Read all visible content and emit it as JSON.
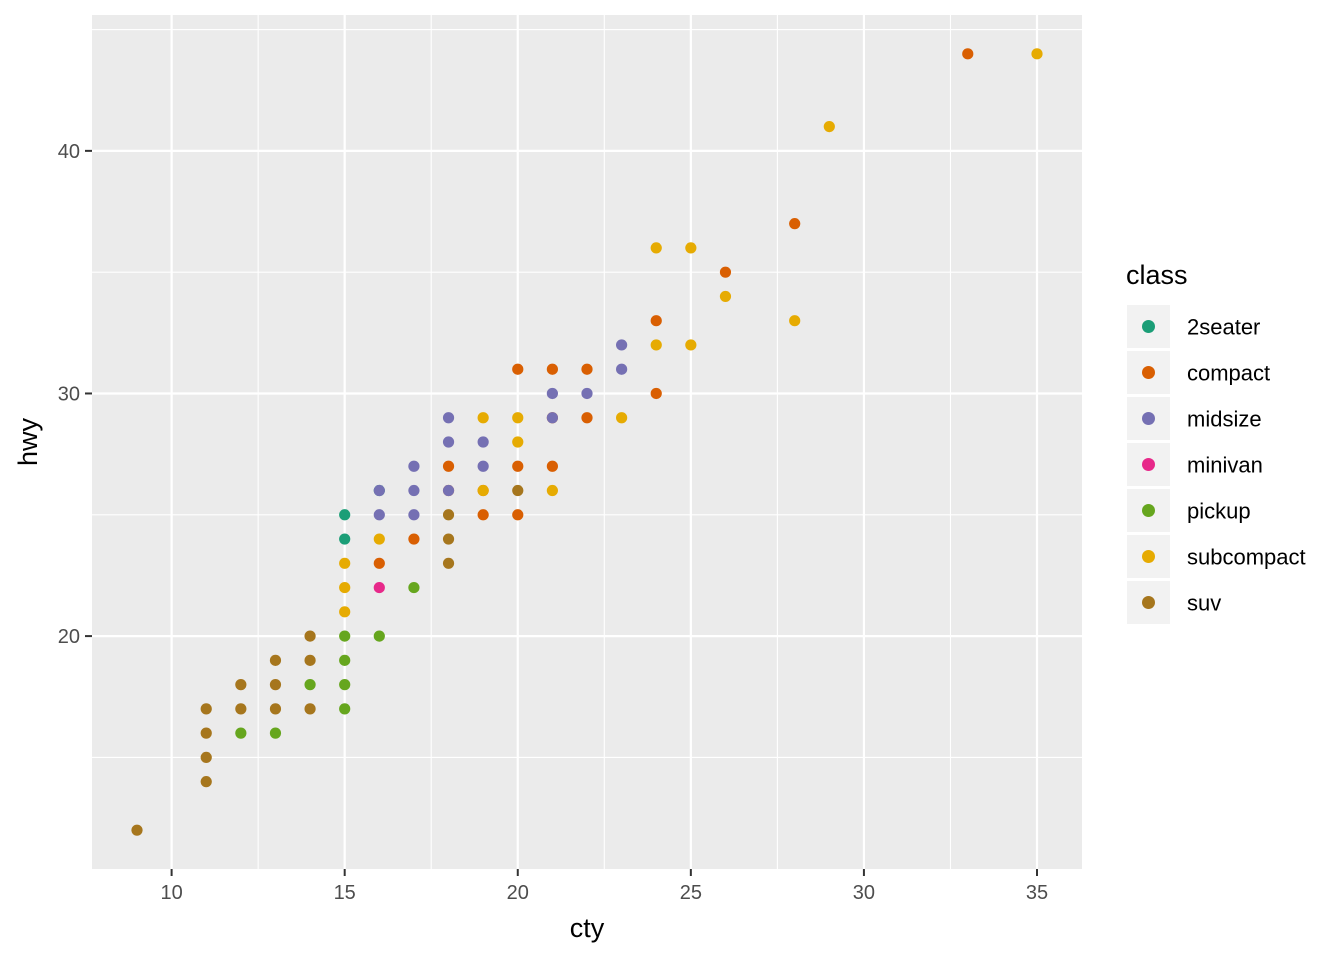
{
  "chart_data": {
    "type": "scatter",
    "xlabel": "cty",
    "ylabel": "hwy",
    "xlim": [
      7.7,
      36.3
    ],
    "ylim": [
      10.4,
      45.6
    ],
    "x_ticks": [
      10,
      15,
      20,
      25,
      30,
      35
    ],
    "y_ticks": [
      20,
      30,
      40
    ],
    "x_tick_labels": [
      "10",
      "15",
      "20",
      "25",
      "30",
      "35"
    ],
    "y_tick_labels": [
      "20",
      "30",
      "40"
    ],
    "grid": true,
    "legend": {
      "title": "class",
      "position": "right"
    },
    "series": [
      {
        "name": "2seater",
        "color": "#1B9E77",
        "points": [
          [
            15,
            25
          ],
          [
            15,
            24
          ],
          [
            16,
            26
          ]
        ]
      },
      {
        "name": "compact",
        "color": "#D95F02",
        "points": [
          [
            33,
            44
          ],
          [
            28,
            37
          ],
          [
            26,
            35
          ],
          [
            24,
            33
          ],
          [
            24,
            30
          ],
          [
            22,
            31
          ],
          [
            22,
            29
          ],
          [
            21,
            31
          ],
          [
            21,
            29
          ],
          [
            21,
            27
          ],
          [
            20,
            31
          ],
          [
            20,
            27
          ],
          [
            20,
            25
          ],
          [
            19,
            26
          ],
          [
            19,
            25
          ],
          [
            18,
            27
          ],
          [
            18,
            26
          ],
          [
            17,
            24
          ],
          [
            16,
            23
          ]
        ]
      },
      {
        "name": "midsize",
        "color": "#7570B3",
        "points": [
          [
            23,
            32
          ],
          [
            23,
            31
          ],
          [
            22,
            30
          ],
          [
            21,
            30
          ],
          [
            21,
            29
          ],
          [
            19,
            28
          ],
          [
            19,
            27
          ],
          [
            18,
            29
          ],
          [
            18,
            28
          ],
          [
            18,
            26
          ],
          [
            17,
            27
          ],
          [
            17,
            26
          ],
          [
            17,
            25
          ],
          [
            16,
            26
          ],
          [
            16,
            25
          ]
        ]
      },
      {
        "name": "minivan",
        "color": "#E7298A",
        "points": [
          [
            16,
            22
          ]
        ]
      },
      {
        "name": "pickup",
        "color": "#66A61E",
        "points": [
          [
            17,
            22
          ],
          [
            16,
            20
          ],
          [
            15,
            20
          ],
          [
            15,
            19
          ],
          [
            15,
            18
          ],
          [
            15,
            17
          ],
          [
            14,
            18
          ],
          [
            13,
            16
          ],
          [
            12,
            16
          ]
        ]
      },
      {
        "name": "subcompact",
        "color": "#E6AB02",
        "points": [
          [
            35,
            44
          ],
          [
            29,
            41
          ],
          [
            28,
            33
          ],
          [
            26,
            34
          ],
          [
            25,
            36
          ],
          [
            25,
            32
          ],
          [
            24,
            36
          ],
          [
            24,
            32
          ],
          [
            23,
            29
          ],
          [
            21,
            26
          ],
          [
            20,
            29
          ],
          [
            20,
            28
          ],
          [
            19,
            29
          ],
          [
            19,
            26
          ],
          [
            16,
            24
          ],
          [
            15,
            23
          ],
          [
            15,
            22
          ],
          [
            15,
            21
          ]
        ]
      },
      {
        "name": "suv",
        "color": "#A6761D",
        "points": [
          [
            9,
            12
          ],
          [
            11,
            17
          ],
          [
            11,
            16
          ],
          [
            11,
            15
          ],
          [
            11,
            14
          ],
          [
            12,
            18
          ],
          [
            12,
            17
          ],
          [
            13,
            19
          ],
          [
            13,
            18
          ],
          [
            13,
            17
          ],
          [
            14,
            20
          ],
          [
            14,
            19
          ],
          [
            14,
            17
          ],
          [
            18,
            25
          ],
          [
            18,
            24
          ],
          [
            18,
            23
          ],
          [
            20,
            26
          ]
        ]
      }
    ]
  }
}
